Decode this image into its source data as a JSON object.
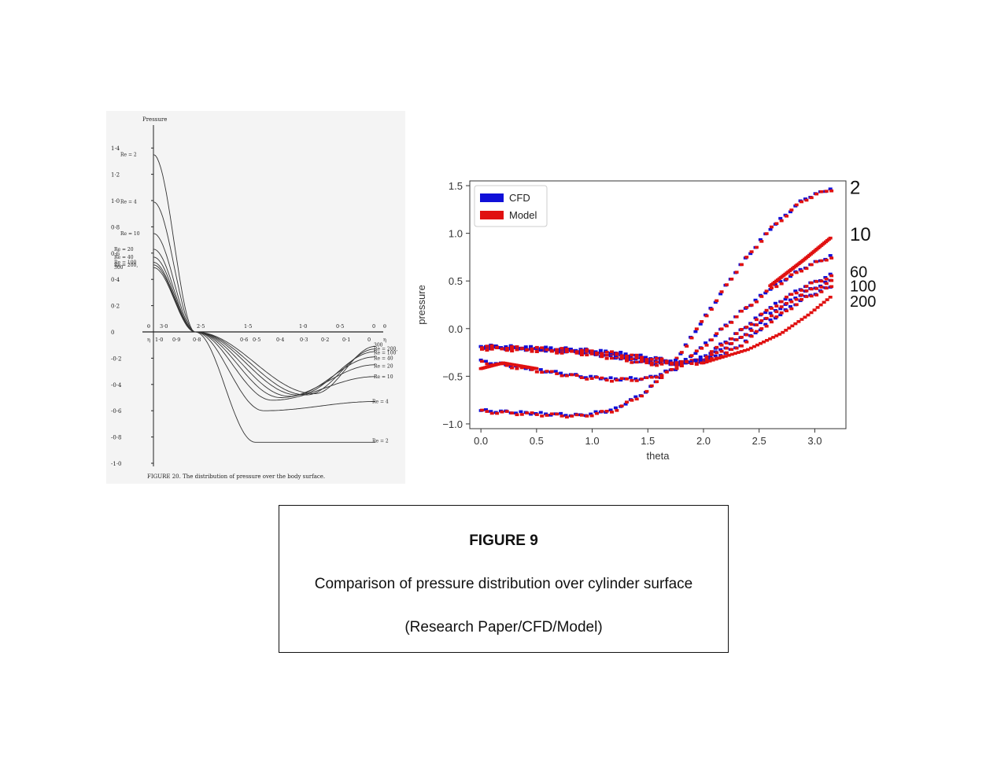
{
  "chart_data": [
    {
      "type": "line",
      "ylabel": "Pressure",
      "caption": "FIGURE 20. The distribution of pressure over the body surface.",
      "ylim": [
        -1.0,
        1.4
      ],
      "y_ticks": [
        "1·4",
        "1·2",
        "1·0",
        "0·8",
        "0·6",
        "0·4",
        "0·2",
        "0",
        "-0·2",
        "-0·4",
        "-0·6",
        "-0·8",
        "-1·0"
      ],
      "theta_ticks": [
        "θ",
        "3·0",
        "2·5",
        "1·5",
        "1·0",
        "0·5",
        "0",
        "θ"
      ],
      "eta_ticks": [
        "η",
        "1·0",
        "0·9",
        "0·8",
        "0·6",
        "0·5",
        "0·4",
        "0·3",
        "0·2",
        "0·1",
        "0",
        "η"
      ],
      "x_range": [
        3.14,
        0
      ],
      "series": [
        {
          "name": "Re = 2",
          "start": 1.35,
          "end": -0.84
        },
        {
          "name": "Re = 4",
          "start": 0.99,
          "end": -0.53
        },
        {
          "name": "Re = 10",
          "start": 0.75,
          "end": -0.34
        },
        {
          "name": "Re = 20",
          "start": 0.63,
          "end": -0.25
        },
        {
          "name": "Re = 40",
          "start": 0.57,
          "end": -0.19
        },
        {
          "name": "Re = 100",
          "start": 0.53,
          "end": -0.15
        },
        {
          "name": "Re = 200,",
          "start": 0.51,
          "end": -0.13
        },
        {
          "name": "300",
          "start": 0.49,
          "end": -0.11
        }
      ]
    },
    {
      "type": "scatter",
      "xlabel": "theta",
      "ylabel": "pressure",
      "xlim": [
        -0.1,
        3.28
      ],
      "ylim": [
        -1.05,
        1.55
      ],
      "x_ticks": [
        "0.0",
        "0.5",
        "1.0",
        "1.5",
        "2.0",
        "2.5",
        "3.0"
      ],
      "y_ticks": [
        "1.5",
        "1.0",
        "0.5",
        "0.0",
        "−0.5",
        "−1.0"
      ],
      "legend": {
        "position": "top-left",
        "entries": [
          "CFD",
          "Model"
        ]
      },
      "colors": {
        "CFD": "#1010d8",
        "Model": "#e01010"
      },
      "re_labels": [
        {
          "text": "2",
          "y": 1.48
        },
        {
          "text": "10",
          "y": 0.99
        },
        {
          "text": "60",
          "y": 0.59
        },
        {
          "text": "100",
          "y": 0.44
        },
        {
          "text": "200",
          "y": 0.28
        }
      ],
      "curves": [
        {
          "re": "2",
          "values": [
            [
              0.0,
              -0.86
            ],
            [
              0.5,
              -0.89
            ],
            [
              0.9,
              -0.91
            ],
            [
              1.2,
              -0.85
            ],
            [
              1.5,
              -0.65
            ],
            [
              1.75,
              -0.33
            ],
            [
              2.0,
              0.1
            ],
            [
              2.3,
              0.62
            ],
            [
              2.6,
              1.05
            ],
            [
              2.9,
              1.36
            ],
            [
              3.14,
              1.47
            ]
          ]
        },
        {
          "re": "10",
          "values": [
            [
              0.0,
              -0.34
            ],
            [
              0.5,
              -0.43
            ],
            [
              0.9,
              -0.5
            ],
            [
              1.2,
              -0.53
            ],
            [
              1.5,
              -0.52
            ],
            [
              1.75,
              -0.42
            ],
            [
              2.0,
              -0.18
            ],
            [
              2.3,
              0.14
            ],
            [
              2.6,
              0.42
            ],
            [
              2.9,
              0.64
            ],
            [
              3.14,
              0.76
            ]
          ]
        },
        {
          "re": "60",
          "values": [
            [
              0.0,
              -0.2
            ],
            [
              0.5,
              -0.22
            ],
            [
              0.9,
              -0.25
            ],
            [
              1.2,
              -0.3
            ],
            [
              1.5,
              -0.36
            ],
            [
              1.8,
              -0.37
            ],
            [
              2.0,
              -0.3
            ],
            [
              2.3,
              -0.05
            ],
            [
              2.6,
              0.22
            ],
            [
              2.9,
              0.44
            ],
            [
              3.14,
              0.56
            ]
          ]
        },
        {
          "re": "100",
          "values": [
            [
              0.0,
              -0.19
            ],
            [
              0.5,
              -0.21
            ],
            [
              0.9,
              -0.23
            ],
            [
              1.2,
              -0.27
            ],
            [
              1.5,
              -0.33
            ],
            [
              1.8,
              -0.36
            ],
            [
              2.0,
              -0.33
            ],
            [
              2.3,
              -0.12
            ],
            [
              2.6,
              0.15
            ],
            [
              2.9,
              0.38
            ],
            [
              3.14,
              0.5
            ]
          ]
        },
        {
          "re": "200",
          "values": [
            [
              0.0,
              -0.18
            ],
            [
              0.5,
              -0.2
            ],
            [
              0.9,
              -0.22
            ],
            [
              1.2,
              -0.25
            ],
            [
              1.5,
              -0.3
            ],
            [
              1.8,
              -0.35
            ],
            [
              2.0,
              -0.35
            ],
            [
              2.3,
              -0.2
            ],
            [
              2.6,
              0.08
            ],
            [
              2.9,
              0.32
            ],
            [
              3.14,
              0.44
            ]
          ]
        }
      ],
      "model_extra": [
        {
          "curve": "10",
          "values": [
            [
              2.6,
              0.45
            ],
            [
              2.9,
              0.72
            ],
            [
              3.14,
              0.95
            ]
          ]
        },
        {
          "curve": "200",
          "values": [
            [
              2.0,
              -0.36
            ],
            [
              2.4,
              -0.22
            ],
            [
              2.7,
              -0.05
            ],
            [
              2.95,
              0.15
            ],
            [
              3.14,
              0.33
            ]
          ]
        },
        {
          "curve": "2",
          "values": [
            [
              0.0,
              -0.42
            ],
            [
              0.2,
              -0.36
            ],
            [
              0.5,
              -0.42
            ]
          ]
        }
      ]
    }
  ],
  "figure": {
    "title": "FIGURE 9",
    "description": "Comparison of pressure distribution over cylinder surface",
    "subtitle": "(Research Paper/CFD/Model)"
  }
}
